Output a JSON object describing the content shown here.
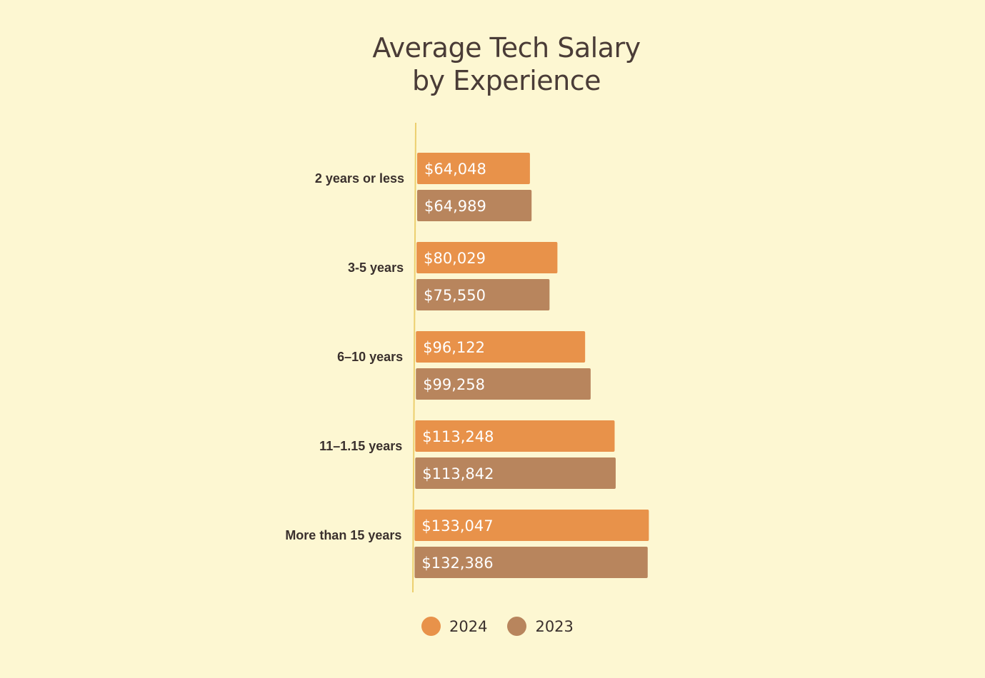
{
  "chart_data": {
    "type": "bar",
    "orientation": "horizontal",
    "title_lines": [
      "Average Tech Salary",
      "by Experience"
    ],
    "categories": [
      "2 years or less",
      "3-5 years",
      "6–10 years",
      "11–1.15 years",
      "More than 15 years"
    ],
    "series": [
      {
        "name": "2024",
        "color": "#e8924a",
        "values": [
          64048,
          80029,
          96122,
          113248,
          133047
        ],
        "labels": [
          "$64,048",
          "$80,029",
          "$96,122",
          "$113,248",
          "$133,047"
        ]
      },
      {
        "name": "2023",
        "color": "#b8855d",
        "values": [
          64989,
          75550,
          99258,
          113842,
          132386
        ],
        "labels": [
          "$64,989",
          "$75,550",
          "$99,258",
          "$113,842",
          "$132,386"
        ]
      }
    ],
    "xlim": [
      0,
      133047
    ],
    "xlabel": "",
    "ylabel": "",
    "grid": false,
    "legend_position": "bottom"
  }
}
